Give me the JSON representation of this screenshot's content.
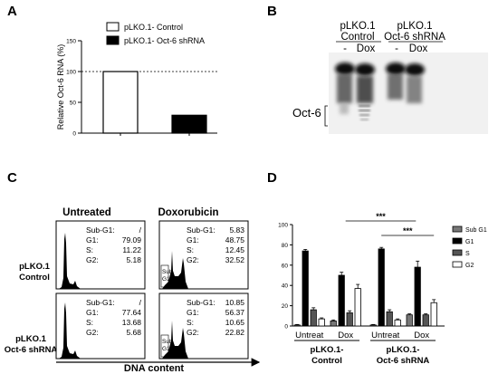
{
  "panels": {
    "a": "A",
    "b": "B",
    "c": "C",
    "d": "D"
  },
  "chart_data": [
    {
      "panel": "A",
      "type": "bar",
      "ylabel": "Relative Oct-6 RNA (%)",
      "ylim": [
        0,
        150
      ],
      "yticks": [
        "0",
        "50",
        "100",
        "150"
      ],
      "reference_line": 100,
      "series": [
        {
          "name": "pLKO.1- Control",
          "values": [
            100
          ],
          "color": "#ffffff"
        },
        {
          "name": "pLKO.1- Oct-6 shRNA",
          "values": [
            29
          ],
          "color": "#000000"
        }
      ]
    },
    {
      "panel": "D",
      "type": "bar",
      "ylim": [
        0,
        100
      ],
      "yticks": [
        "0",
        "20",
        "40",
        "60",
        "80",
        "100"
      ],
      "legend": "right",
      "categories": [
        "Untreat",
        "Dox",
        "Untreat",
        "Dox"
      ],
      "group_labels": [
        {
          "line1": "pLKO.1-",
          "line2": "Control"
        },
        {
          "line1": "pLKO.1-",
          "line2": "Oct-6 shRNA"
        }
      ],
      "significance": [
        "***",
        "***"
      ],
      "series": [
        {
          "name": "Sub G1",
          "color": "#777777",
          "values": [
            1,
            5,
            1,
            11
          ],
          "err": [
            0.5,
            1,
            0.5,
            1
          ]
        },
        {
          "name": "G1",
          "color": "#000000",
          "values": [
            74,
            50,
            76,
            58
          ],
          "err": [
            1.5,
            3,
            1.5,
            6
          ]
        },
        {
          "name": "S",
          "color": "#555555",
          "values": [
            16,
            13,
            14,
            11
          ],
          "err": [
            2,
            2,
            2,
            1
          ]
        },
        {
          "name": "G2",
          "color": "#ffffff",
          "values": [
            7,
            37,
            6,
            23
          ],
          "err": [
            1,
            4,
            1,
            3
          ]
        }
      ]
    }
  ],
  "blot": {
    "col1_line1": "pLKO.1",
    "col1_line2": "Control",
    "col2_line1": "pLKO.1",
    "col2_line2": "Oct-6 shRNA",
    "minus": "-",
    "dox": "Dox",
    "band_label": "Oct-6"
  },
  "flow": {
    "col_untreated": "Untreated",
    "col_dox": "Doxorubicin",
    "row1_line1": "pLKO.1",
    "row1_line2": "Control",
    "row2_line1": "pLKO.1",
    "row2_line2": "Oct-6 shRNA",
    "xaxis": "DNA content",
    "subg1_gate": "Sub\nG1",
    "cells": [
      {
        "rows": [
          [
            "Sub-G1:",
            "/"
          ],
          [
            "G1:",
            "79.09"
          ],
          [
            "S:",
            "11.22"
          ],
          [
            "G2:",
            "5.18"
          ]
        ]
      },
      {
        "rows": [
          [
            "Sub-G1:",
            "5.83"
          ],
          [
            "G1:",
            "48.75"
          ],
          [
            "S:",
            "12.45"
          ],
          [
            "G2:",
            "32.52"
          ]
        ]
      },
      {
        "rows": [
          [
            "Sub-G1:",
            "/"
          ],
          [
            "G1:",
            "77.64"
          ],
          [
            "S:",
            "13.68"
          ],
          [
            "G2:",
            "5.68"
          ]
        ]
      },
      {
        "rows": [
          [
            "Sub-G1:",
            "10.85"
          ],
          [
            "G1:",
            "56.37"
          ],
          [
            "S:",
            "10.65"
          ],
          [
            "G2:",
            "22.82"
          ]
        ]
      }
    ]
  }
}
